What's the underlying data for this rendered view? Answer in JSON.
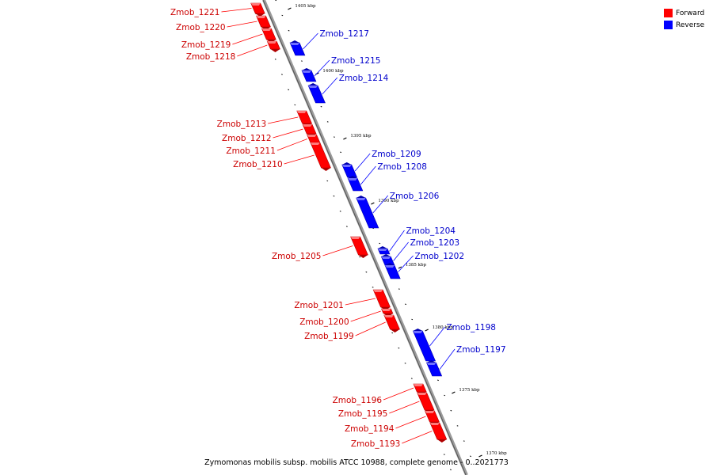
{
  "legend": {
    "forward_label": "Forward",
    "reverse_label": "Reverse",
    "forward_color": "#ff0000",
    "reverse_color": "#0000ff"
  },
  "caption": "Zymomonas mobilis subsp. mobilis ATCC 10988, complete genome - 0..2021773",
  "ticks": [
    "1405 kbp",
    "1400 kbp",
    "1395 kbp",
    "1390 kbp",
    "1385 kbp",
    "1380 kbp",
    "1375 kbp",
    "1370 kbp"
  ],
  "genes": [
    {
      "name": "Zmob_1221",
      "strand": "forward"
    },
    {
      "name": "Zmob_1220",
      "strand": "forward"
    },
    {
      "name": "Zmob_1219",
      "strand": "forward"
    },
    {
      "name": "Zmob_1218",
      "strand": "forward"
    },
    {
      "name": "Zmob_1217",
      "strand": "reverse"
    },
    {
      "name": "Zmob_1215",
      "strand": "reverse"
    },
    {
      "name": "Zmob_1214",
      "strand": "reverse"
    },
    {
      "name": "Zmob_1213",
      "strand": "forward"
    },
    {
      "name": "Zmob_1212",
      "strand": "forward"
    },
    {
      "name": "Zmob_1211",
      "strand": "forward"
    },
    {
      "name": "Zmob_1210",
      "strand": "forward"
    },
    {
      "name": "Zmob_1209",
      "strand": "reverse"
    },
    {
      "name": "Zmob_1208",
      "strand": "reverse"
    },
    {
      "name": "Zmob_1206",
      "strand": "reverse"
    },
    {
      "name": "Zmob_1205",
      "strand": "forward"
    },
    {
      "name": "Zmob_1204",
      "strand": "reverse"
    },
    {
      "name": "Zmob_1203",
      "strand": "reverse"
    },
    {
      "name": "Zmob_1202",
      "strand": "reverse"
    },
    {
      "name": "Zmob_1201",
      "strand": "forward"
    },
    {
      "name": "Zmob_1200",
      "strand": "forward"
    },
    {
      "name": "Zmob_1199",
      "strand": "forward"
    },
    {
      "name": "Zmob_1198",
      "strand": "reverse"
    },
    {
      "name": "Zmob_1197",
      "strand": "reverse"
    },
    {
      "name": "Zmob_1196",
      "strand": "forward"
    },
    {
      "name": "Zmob_1195",
      "strand": "forward"
    },
    {
      "name": "Zmob_1194",
      "strand": "forward"
    },
    {
      "name": "Zmob_1193",
      "strand": "forward"
    }
  ]
}
